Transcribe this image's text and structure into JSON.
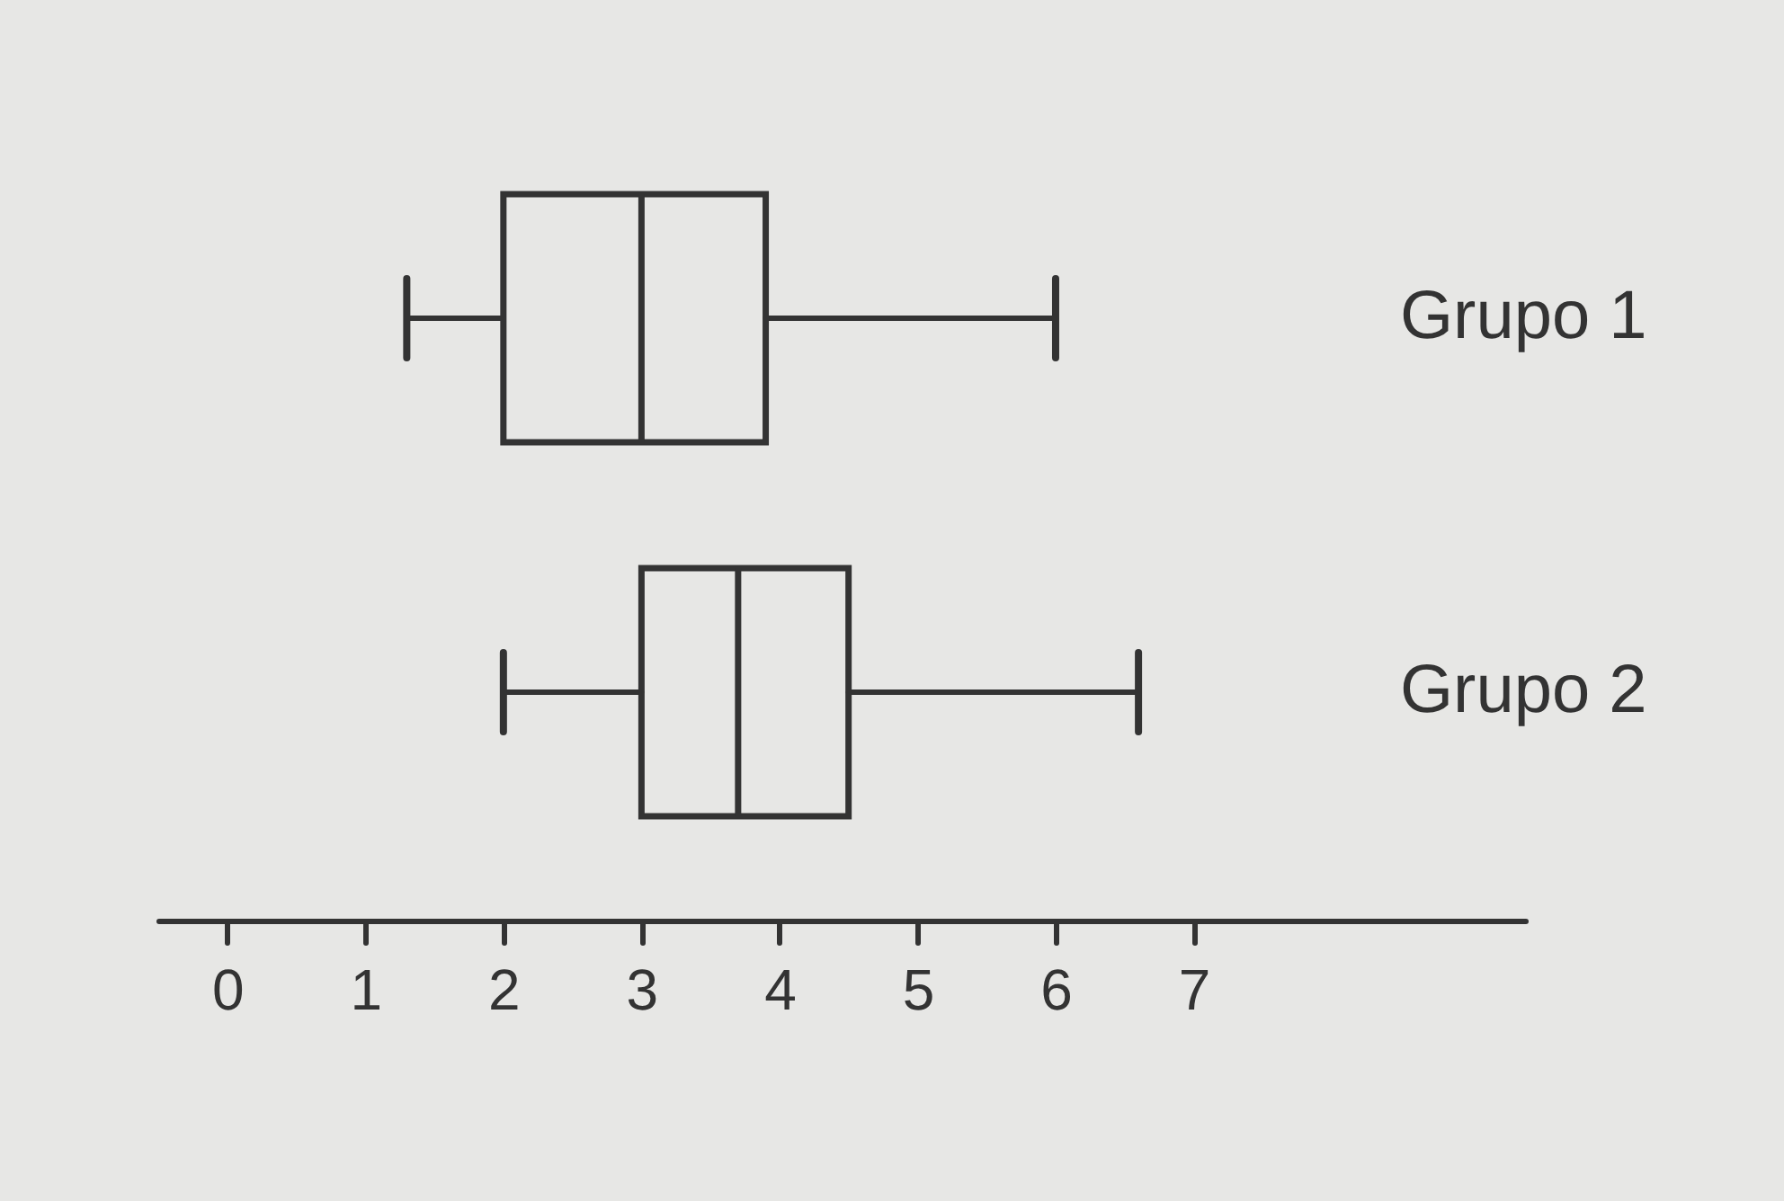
{
  "chart_data": {
    "type": "box",
    "orientation": "horizontal",
    "categories": [
      "Grupo 1",
      "Grupo 2"
    ],
    "boxes": [
      {
        "low": 1.3,
        "q1": 2,
        "median": 3,
        "q3": 3.9,
        "high": 6
      },
      {
        "low": 2,
        "q1": 3,
        "median": 3.7,
        "q3": 4.5,
        "high": 6.6
      }
    ],
    "color": "#333333",
    "xlim": [
      -0.5,
      9.4
    ],
    "xticks": [
      0,
      1,
      2,
      3,
      4,
      5,
      6,
      7
    ]
  }
}
